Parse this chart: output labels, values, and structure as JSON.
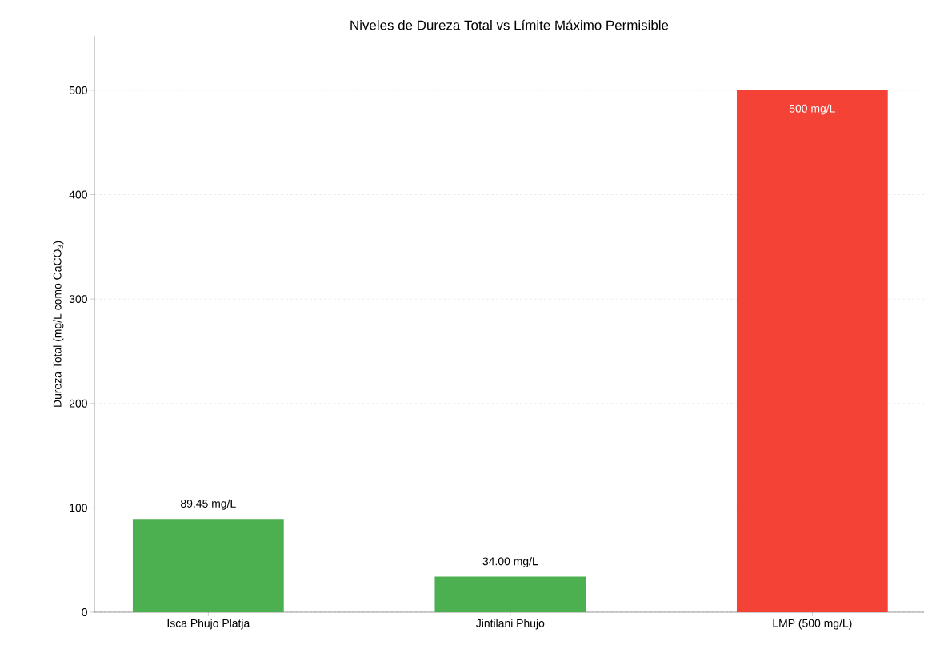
{
  "chart_data": {
    "type": "bar",
    "title": "Niveles de Dureza Total vs Límite Máximo Permisible",
    "ylabel": "Dureza Total (mg/L como CaCO$_{3}$)",
    "categories": [
      "Isca Phujo Platja",
      "Jintilani Phujo",
      "LMP (500 mg/L)"
    ],
    "values": [
      89.45,
      34.0,
      500
    ],
    "colors": [
      "#4caf50",
      "#4caf50",
      "#f44336"
    ],
    "value_labels": [
      "89.45 mg/L",
      "34.00 mg/L",
      "500 mg/L"
    ],
    "ylim": [
      0,
      552
    ],
    "yticks": [
      0,
      100,
      200,
      300,
      400,
      500
    ],
    "grid": "y"
  }
}
